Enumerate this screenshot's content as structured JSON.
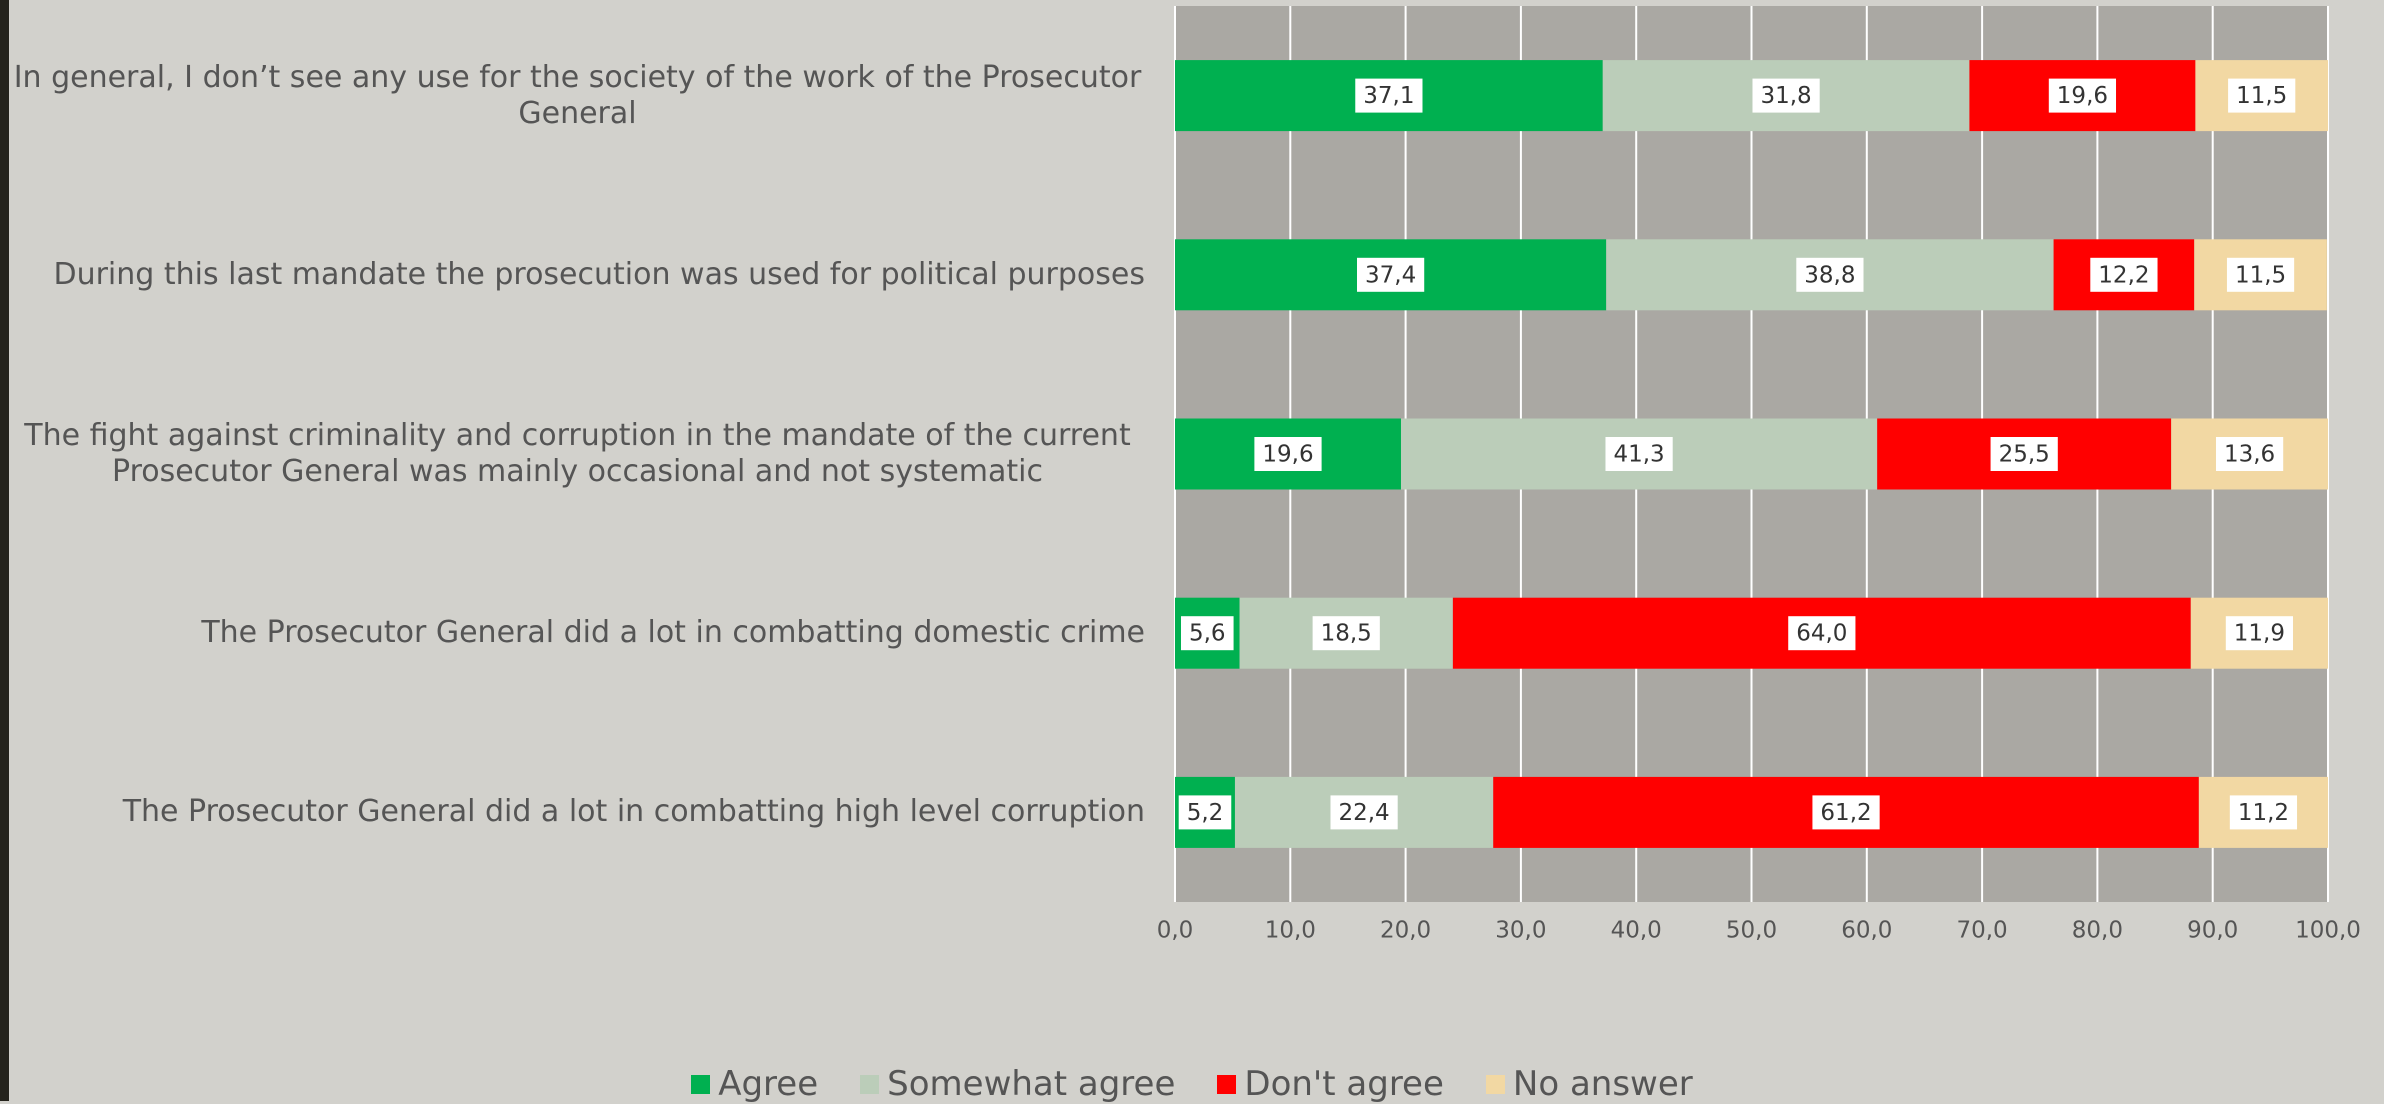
{
  "chart_data": {
    "type": "stacked-bar",
    "categories": [
      "In general, I don’t see any use for the society of the work of the Prosecutor General",
      "During this last mandate the prosecution was used for political purposes",
      "The fight against criminality and corruption in the mandate of the current Prosecutor General was mainly occasional and not systematic",
      "The Prosecutor General did a lot in combatting domestic crime",
      "The Prosecutor General did a lot in combatting high level corruption"
    ],
    "series": [
      {
        "name": "Agree",
        "color": "#00b050",
        "values": [
          37.1,
          37.4,
          19.6,
          5.6,
          5.2
        ],
        "value_labels": [
          "37,1",
          "37,4",
          "19,6",
          "5,6",
          "5,2"
        ]
      },
      {
        "name": "Somewhat agree",
        "color": "#bbcdb9",
        "values": [
          31.8,
          38.8,
          41.3,
          18.5,
          22.4
        ],
        "value_labels": [
          "31,8",
          "38,8",
          "41,3",
          "18,5",
          "22,4"
        ]
      },
      {
        "name": "Don't agree",
        "color": "#ff0000",
        "values": [
          19.6,
          12.2,
          25.5,
          64.0,
          61.2
        ],
        "value_labels": [
          "19,6",
          "12,2",
          "25,5",
          "64,0",
          "61,2"
        ]
      },
      {
        "name": "No answer",
        "color": "#f2d8a3",
        "values": [
          11.5,
          11.5,
          13.6,
          11.9,
          11.2
        ],
        "value_labels": [
          "11,5",
          "11,5",
          "13,6",
          "11,9",
          "11,2"
        ]
      }
    ],
    "xlim": [
      0,
      100
    ],
    "xticks": [
      {
        "value": 0,
        "label": "0,0"
      },
      {
        "value": 10,
        "label": "10,0"
      },
      {
        "value": 20,
        "label": "20,0"
      },
      {
        "value": 30,
        "label": "30,0"
      },
      {
        "value": 40,
        "label": "40,0"
      },
      {
        "value": 50,
        "label": "50,0"
      },
      {
        "value": 60,
        "label": "60,0"
      },
      {
        "value": 70,
        "label": "70,0"
      },
      {
        "value": 80,
        "label": "80,0"
      },
      {
        "value": 90,
        "label": "90,0"
      },
      {
        "value": 100,
        "label": "100,0"
      }
    ],
    "grid": true
  }
}
